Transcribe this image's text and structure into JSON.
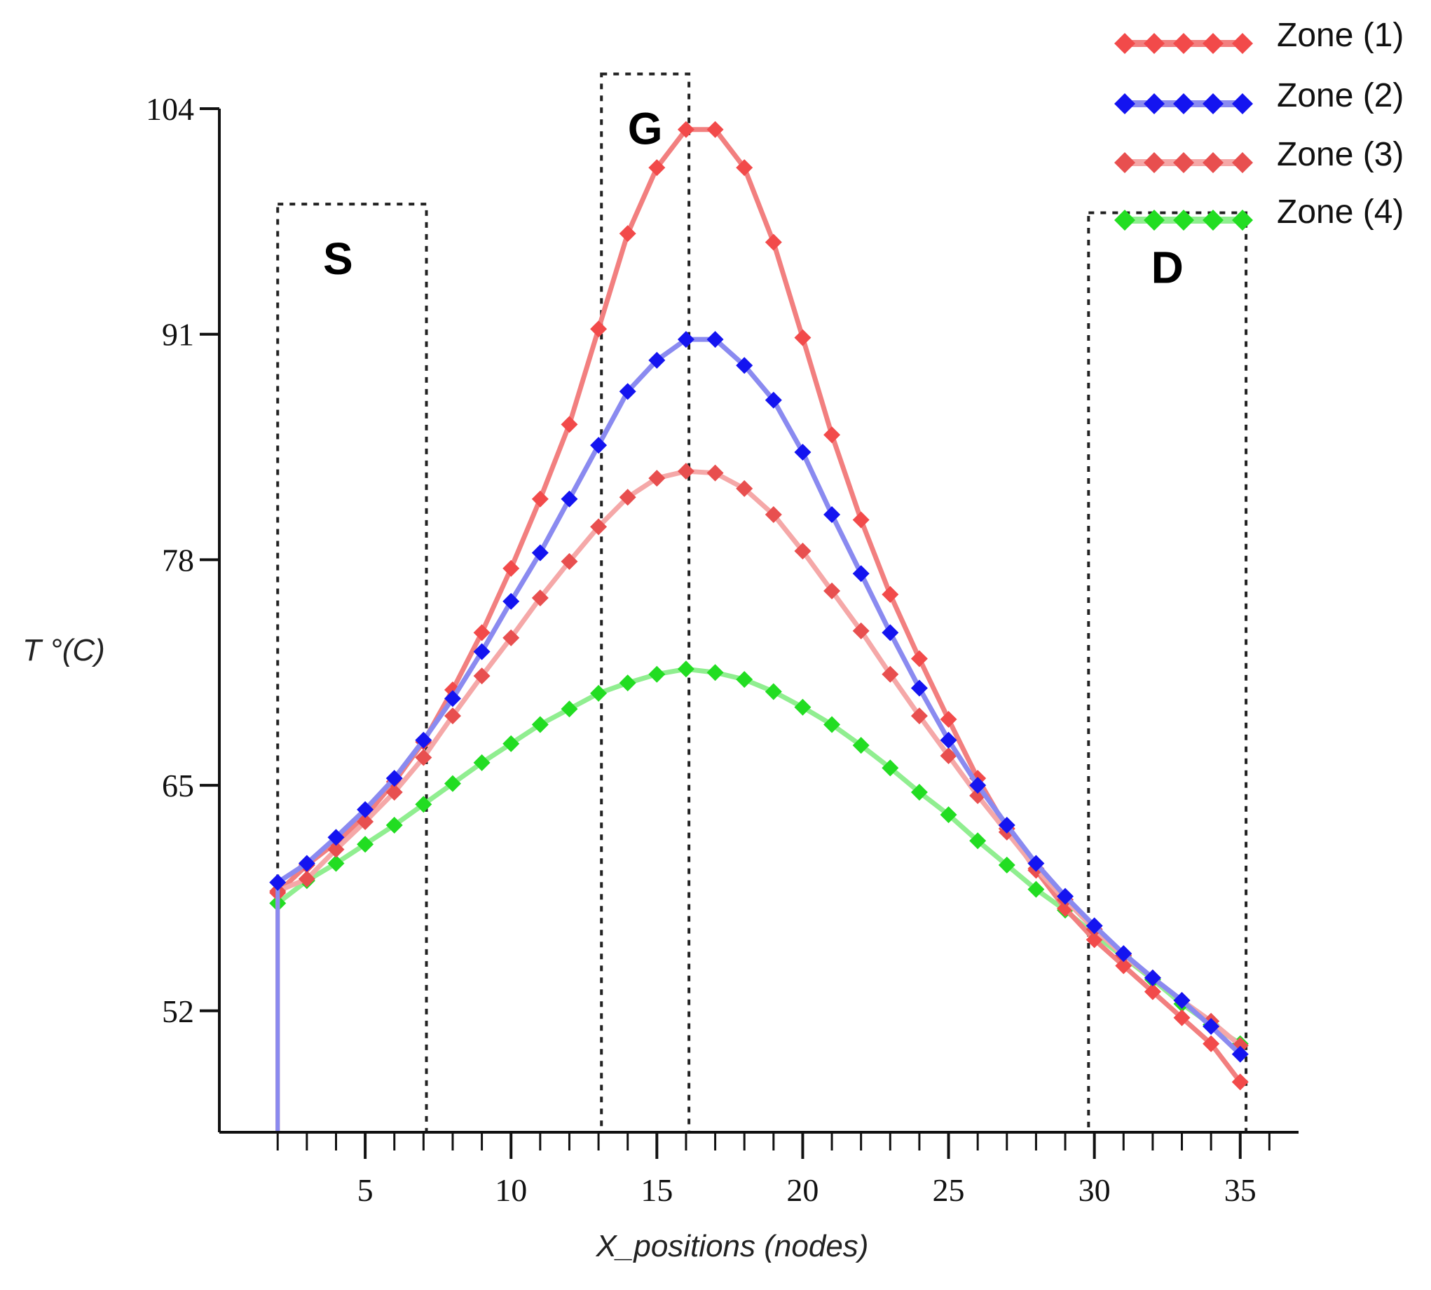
{
  "chart_data": {
    "type": "line",
    "title": "",
    "xlabel": "X_positions (nodes)",
    "ylabel": "T °(C)",
    "xlim": [
      0,
      37
    ],
    "ylim": [
      45,
      104
    ],
    "x_ticks": [
      5,
      10,
      15,
      20,
      25,
      30,
      35
    ],
    "x_tick_labels": [
      "5",
      "10",
      "15",
      "20",
      "25",
      "30",
      "35"
    ],
    "y_ticks": [
      52,
      65,
      78,
      91,
      104
    ],
    "y_tick_labels": [
      "52",
      "65",
      "78",
      "91",
      "104"
    ],
    "regions": [
      {
        "label": "S",
        "x_range": [
          2,
          7.1
        ],
        "y_range": [
          45,
          98.5
        ]
      },
      {
        "label": "G",
        "x_range": [
          13.1,
          16.1
        ],
        "y_range": [
          45,
          106
        ]
      },
      {
        "label": "D",
        "x_range": [
          29.8,
          35.2
        ],
        "y_range": [
          45,
          98
        ]
      }
    ],
    "x": [
      2,
      3,
      4,
      5,
      6,
      7,
      8,
      9,
      10,
      11,
      12,
      13,
      14,
      15,
      16,
      17,
      18,
      19,
      20,
      21,
      22,
      23,
      24,
      25,
      26,
      27,
      28,
      29,
      30,
      31,
      32,
      33,
      34,
      35
    ],
    "series": [
      {
        "name": "Zone (1)",
        "color": "#f24a4a",
        "line_color": "#f27f7f",
        "values": [
          58.8,
          60.4,
          61.7,
          63.2,
          65.2,
          67.5,
          70.5,
          73.8,
          77.5,
          81.5,
          85.8,
          91.3,
          96.8,
          100.6,
          102.8,
          102.8,
          100.6,
          96.3,
          90.8,
          85.2,
          80.3,
          76.0,
          72.3,
          68.8,
          65.4,
          62.5,
          60.1,
          57.9,
          56.1,
          54.6,
          53.1,
          51.6,
          50.1,
          47.9
        ]
      },
      {
        "name": "Zone (2)",
        "color": "#1414f0",
        "line_color": "#8a8af0",
        "values": [
          59.4,
          60.5,
          62.0,
          63.6,
          65.4,
          67.6,
          70.0,
          72.7,
          75.6,
          78.4,
          81.5,
          84.6,
          87.7,
          89.5,
          90.7,
          90.7,
          89.2,
          87.2,
          84.2,
          80.6,
          77.2,
          73.8,
          70.6,
          67.6,
          65.0,
          62.7,
          60.5,
          58.6,
          56.9,
          55.3,
          53.9,
          52.6,
          51.1,
          49.5
        ]
      },
      {
        "name": "Zone (3)",
        "color": "#e84f4f",
        "line_color": "#f5a8a8",
        "values": [
          58.9,
          59.6,
          61.3,
          62.9,
          64.6,
          66.6,
          69.0,
          71.3,
          73.5,
          75.8,
          77.9,
          79.9,
          81.6,
          82.7,
          83.1,
          83.0,
          82.1,
          80.6,
          78.5,
          76.2,
          73.9,
          71.4,
          69.0,
          66.7,
          64.4,
          62.3,
          60.2,
          58.4,
          56.7,
          55.2,
          53.9,
          52.6,
          51.4,
          50.0
        ]
      },
      {
        "name": "Zone (4)",
        "color": "#22dd22",
        "line_color": "#90ee90",
        "values": [
          58.2,
          59.5,
          60.5,
          61.6,
          62.7,
          63.9,
          65.1,
          66.3,
          67.4,
          68.5,
          69.4,
          70.3,
          70.9,
          71.4,
          71.7,
          71.5,
          71.1,
          70.4,
          69.5,
          68.5,
          67.3,
          66.0,
          64.6,
          63.3,
          61.8,
          60.4,
          59.0,
          57.8,
          56.4,
          55.1,
          53.8,
          52.4,
          51.2,
          50.1
        ]
      }
    ],
    "legend": {
      "position": "top-right",
      "entries": [
        "Zone (1)",
        "Zone (2)",
        "Zone (3)",
        "Zone (4)"
      ]
    }
  }
}
